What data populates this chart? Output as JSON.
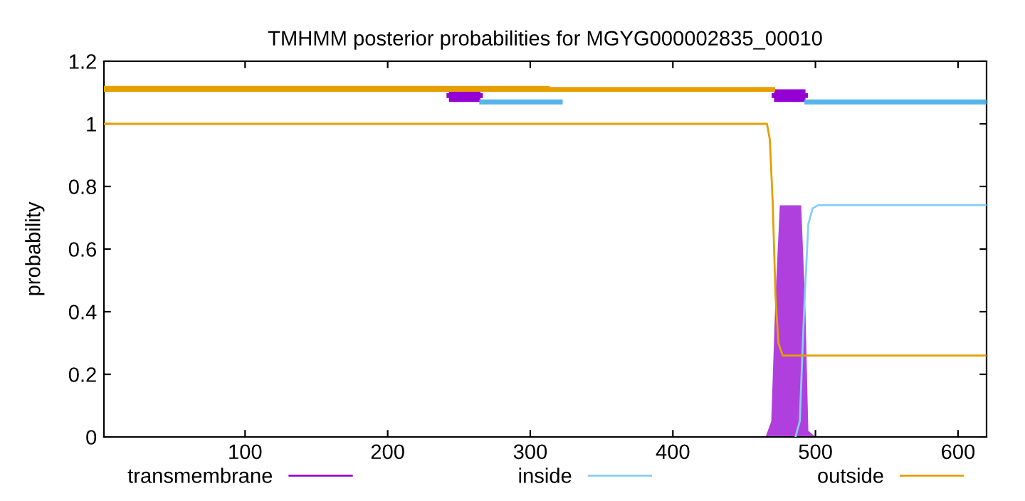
{
  "chart_data": {
    "type": "line",
    "title": "TMHMM posterior probabilities for MGYG000002835_00010",
    "ylabel": "probability",
    "xlim": [
      1,
      620
    ],
    "xticks": [
      100,
      200,
      300,
      400,
      500,
      600
    ],
    "ylim": [
      0,
      1.2
    ],
    "yticks": [
      0,
      0.2,
      0.4,
      0.6,
      0.8,
      1,
      1.2
    ],
    "grid": false,
    "legend": "bottom",
    "marker": "none",
    "line_style": "solid",
    "series": [
      {
        "name": "transmembrane",
        "type": "area",
        "color": "#9400d3",
        "x": [
          1,
          465,
          469,
          472,
          475,
          480,
          490,
          493,
          495,
          500,
          620
        ],
        "values": [
          0,
          0,
          0.05,
          0.45,
          0.74,
          0.74,
          0.74,
          0.4,
          0.02,
          0,
          0
        ]
      },
      {
        "name": "inside",
        "color": "#87cefa",
        "x": [
          486,
          489,
          492,
          495,
          498,
          502,
          620
        ],
        "values": [
          0,
          0.05,
          0.4,
          0.68,
          0.73,
          0.74,
          0.74
        ]
      },
      {
        "name": "outside",
        "color": "#e69f00",
        "x": [
          1,
          466,
          468,
          470,
          472,
          474,
          477,
          620
        ],
        "values": [
          1,
          1,
          0.95,
          0.75,
          0.45,
          0.3,
          0.26,
          0.26
        ]
      },
      {
        "color": "#e69f00",
        "x": [
          1,
          470
        ],
        "values": [
          1.11,
          1.11
        ]
      },
      {
        "color": "#e69f00",
        "x": [
          1,
          312
        ],
        "values": [
          1.113,
          1.113
        ]
      },
      {
        "color": "#56b4e9",
        "x": [
          266,
          321,
          322,
          494,
          620
        ],
        "values": [
          1.07,
          1.07,
          null,
          1.07,
          1.07
        ]
      },
      {
        "color": "#9400d3",
        "x": [
          243,
          265
        ],
        "values": [
          1.09,
          1.09
        ],
        "lower": [
          1.07,
          1.07
        ],
        "upper": [
          1.11,
          1.11
        ]
      },
      {
        "color": "#9400d3",
        "x": [
          471,
          493
        ],
        "values": [
          1.09,
          1.09
        ],
        "lower": [
          1.07,
          1.07
        ],
        "upper": [
          1.11,
          1.11
        ]
      }
    ]
  }
}
